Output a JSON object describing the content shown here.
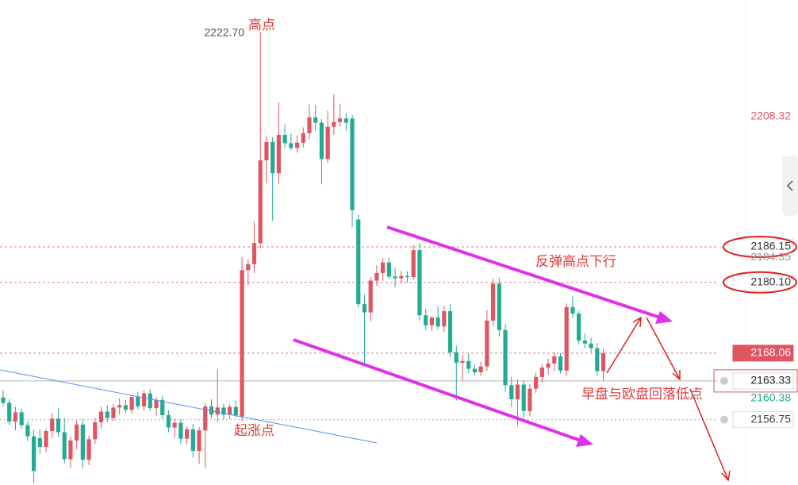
{
  "chart_data": {
    "type": "candlestick",
    "ylim": [
      2145.61,
      2228.18
    ],
    "up_color": "#e05562",
    "down_color": "#22ab94",
    "open": [
      2160.5,
      2159.6,
      2156.4,
      2158.0,
      2155.8,
      2153.9,
      2153.6,
      2152.1,
      2154.8,
      2156.9,
      2154.6,
      2150.0,
      2153.2,
      2155.9,
      2149.9,
      2153.4,
      2156.3,
      2158.1,
      2157.0,
      2158.8,
      2159.2,
      2158.4,
      2160.6,
      2159.0,
      2161.2,
      2158.7,
      2160.1,
      2157.5,
      2155.4,
      2156.2,
      2153.5,
      2155.1,
      2151.4,
      2154.9,
      2159.0,
      2157.6,
      2158.8,
      2157.6,
      2158.9,
      2157.3,
      2182.2,
      2183.2,
      2186.8,
      2200.9,
      2204.0,
      2198.7,
      2205.2,
      2203.8,
      2203.0,
      2203.9,
      2205.5,
      2208.2,
      2207.3,
      2201.1,
      2206.6,
      2207.4,
      2208.0,
      2208.0,
      2190.8,
      2176.4,
      2175.0,
      2180.4,
      2181.7,
      2183.5,
      2181.1,
      2180.8,
      2181.2,
      2181.0,
      2185.6,
      2174.5,
      2172.8,
      2174.1,
      2172.6,
      2175.2,
      2168.2,
      2166.4,
      2166.7,
      2165.4,
      2164.8,
      2165.8,
      2173.6,
      2179.9,
      2172.0,
      2162.6,
      2160.2,
      2162.7,
      2158.2,
      2162.0,
      2164.0,
      2165.6,
      2166.3,
      2167.5,
      2165.1,
      2175.9,
      2174.8,
      2170.2,
      2169.7,
      2168.9,
      2165.0
    ],
    "high": [
      2161.8,
      2160.2,
      2158.9,
      2158.6,
      2156.5,
      2155.0,
      2155.1,
      2155.2,
      2157.9,
      2158.7,
      2157.0,
      2153.8,
      2156.6,
      2156.8,
      2154.0,
      2157.0,
      2158.9,
      2159.2,
      2159.4,
      2160.4,
      2160.1,
      2161.0,
      2161.4,
      2161.7,
      2161.9,
      2160.6,
      2160.8,
      2158.3,
      2156.9,
      2156.8,
      2155.6,
      2156.0,
      2155.5,
      2159.6,
      2160.2,
      2165.3,
      2159.5,
      2159.4,
      2160.0,
      2184.4,
      2184.0,
      2190.4,
      2222.7,
      2205.0,
      2204.8,
      2210.8,
      2207.0,
      2205.5,
      2205.1,
      2206.5,
      2210.4,
      2210.3,
      2207.9,
      2209.3,
      2212.1,
      2210.5,
      2208.9,
      2208.6,
      2191.6,
      2178.0,
      2181.0,
      2183.0,
      2184.2,
      2184.3,
      2182.6,
      2182.0,
      2182.0,
      2186.5,
      2186.8,
      2175.6,
      2174.4,
      2176.0,
      2176.1,
      2176.4,
      2169.3,
      2167.8,
      2168.0,
      2166.1,
      2166.6,
      2175.4,
      2180.7,
      2180.9,
      2173.0,
      2164.0,
      2163.6,
      2163.4,
      2162.8,
      2164.7,
      2166.2,
      2167.1,
      2168.2,
      2168.1,
      2176.5,
      2177.7,
      2175.3,
      2171.4,
      2170.7,
      2169.8,
      2168.8
    ],
    "low": [
      2159.0,
      2155.8,
      2154.9,
      2155.2,
      2153.1,
      2145.9,
      2150.9,
      2151.2,
      2153.6,
      2153.8,
      2149.3,
      2148.6,
      2151.7,
      2148.4,
      2149.0,
      2152.6,
      2155.2,
      2156.3,
      2156.4,
      2157.6,
      2157.9,
      2157.8,
      2158.5,
      2158.3,
      2158.2,
      2157.4,
      2156.9,
      2154.6,
      2153.7,
      2152.6,
      2152.5,
      2150.3,
      2149.2,
      2148.5,
      2157.0,
      2156.3,
      2156.8,
      2156.8,
      2157.1,
      2156.5,
      2179.6,
      2181.7,
      2185.9,
      2197.0,
      2190.6,
      2196.9,
      2203.0,
      2202.6,
      2202.2,
      2203.1,
      2204.5,
      2205.9,
      2196.8,
      2200.4,
      2205.2,
      2206.6,
      2205.9,
      2189.5,
      2175.8,
      2166.0,
      2173.5,
      2179.5,
      2180.4,
      2180.7,
      2179.3,
      2180.0,
      2180.1,
      2180.5,
      2173.6,
      2172.0,
      2171.8,
      2172.1,
      2171.6,
      2167.4,
      2160.0,
      2163.4,
      2164.7,
      2164.3,
      2164.2,
      2165.0,
      2172.7,
      2170.9,
      2161.5,
      2158.9,
      2155.6,
      2157.0,
      2157.3,
      2161.3,
      2163.0,
      2164.4,
      2165.0,
      2164.6,
      2164.2,
      2174.1,
      2169.5,
      2168.9,
      2168.2,
      2164.3,
      2163.3
    ],
    "close": [
      2159.6,
      2156.4,
      2158.0,
      2155.8,
      2153.9,
      2148.0,
      2152.1,
      2154.8,
      2156.9,
      2154.6,
      2150.0,
      2153.2,
      2155.9,
      2149.9,
      2153.4,
      2156.3,
      2158.1,
      2157.0,
      2158.8,
      2159.2,
      2158.4,
      2160.6,
      2159.0,
      2161.2,
      2158.7,
      2160.1,
      2157.5,
      2155.4,
      2156.2,
      2153.5,
      2155.1,
      2151.4,
      2154.9,
      2159.0,
      2157.6,
      2158.8,
      2157.6,
      2158.9,
      2157.5,
      2182.2,
      2183.2,
      2186.8,
      2200.9,
      2204.0,
      2198.7,
      2205.2,
      2203.8,
      2203.0,
      2203.9,
      2205.5,
      2208.2,
      2207.3,
      2201.1,
      2206.6,
      2207.4,
      2208.0,
      2207.3,
      2192.4,
      2176.4,
      2175.0,
      2180.4,
      2181.7,
      2183.5,
      2181.1,
      2180.8,
      2181.2,
      2181.0,
      2185.6,
      2174.5,
      2172.8,
      2174.1,
      2172.6,
      2175.2,
      2168.2,
      2166.4,
      2166.7,
      2165.4,
      2164.8,
      2165.8,
      2173.6,
      2179.9,
      2172.0,
      2162.6,
      2160.2,
      2162.7,
      2158.2,
      2162.0,
      2164.0,
      2165.6,
      2166.3,
      2167.5,
      2165.1,
      2175.9,
      2174.8,
      2170.2,
      2169.7,
      2168.9,
      2165.0,
      2168.06
    ],
    "price_labels": [
      2208.32,
      2186.15,
      2184.35,
      {
        "value": 2180.1,
        "label": "2180.10"
      },
      2168.06,
      2163.33,
      2160.38,
      2156.75
    ],
    "high_label": {
      "value": 2222.7,
      "label": "2222.70"
    },
    "annotations": [
      "高点",
      "起涨点",
      "反弹高点下行",
      "早盘与欧盘回落低点"
    ]
  }
}
